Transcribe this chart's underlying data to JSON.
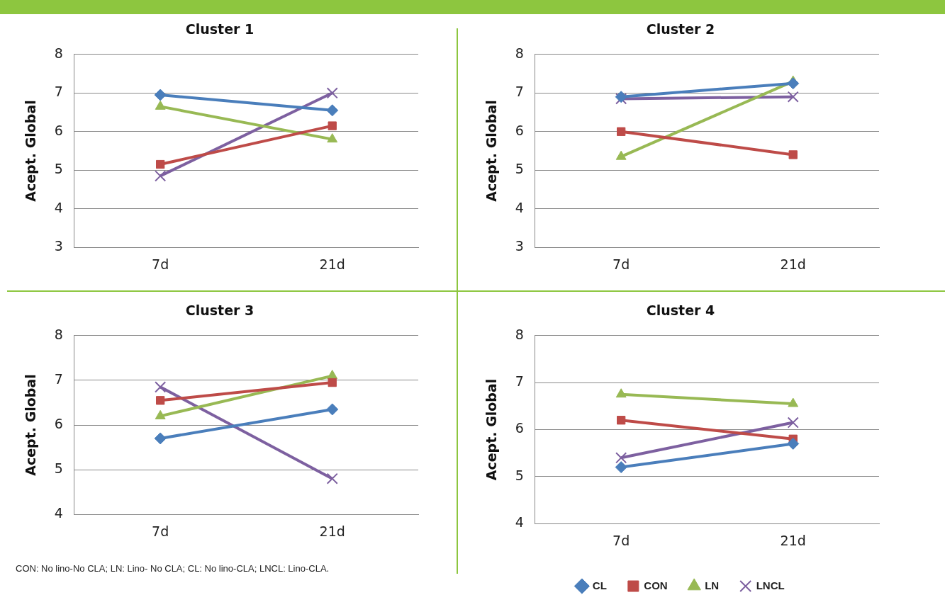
{
  "chart_data": [
    {
      "type": "line",
      "title": "Cluster 1",
      "ylabel": "Acept. Global",
      "categories": [
        "7d",
        "21d"
      ],
      "ylim": [
        3,
        8
      ],
      "yticks": [
        3,
        4,
        5,
        6,
        7,
        8
      ],
      "grid": "y",
      "legend": false,
      "series": [
        {
          "color": "#4a7ebb",
          "marker": "diamond",
          "values": [
            6.95,
            6.55
          ]
        },
        {
          "color": "#be4b48",
          "marker": "square",
          "values": [
            5.15,
            6.15
          ]
        },
        {
          "color": "#98b954",
          "marker": "triangle",
          "values": [
            6.65,
            5.8
          ]
        },
        {
          "color": "#7d60a0",
          "marker": "cross",
          "values": [
            4.85,
            7.0
          ]
        }
      ]
    },
    {
      "type": "line",
      "title": "Cluster 2",
      "ylabel": "Acept. Global",
      "categories": [
        "7d",
        "21d"
      ],
      "ylim": [
        3,
        8
      ],
      "yticks": [
        3,
        4,
        5,
        6,
        7,
        8
      ],
      "grid": "y",
      "legend": false,
      "series": [
        {
          "color": "#4a7ebb",
          "marker": "diamond",
          "values": [
            6.9,
            7.25
          ]
        },
        {
          "color": "#be4b48",
          "marker": "square",
          "values": [
            6.0,
            5.4
          ]
        },
        {
          "color": "#98b954",
          "marker": "triangle",
          "values": [
            5.35,
            7.3
          ]
        },
        {
          "color": "#7d60a0",
          "marker": "cross",
          "values": [
            6.85,
            6.9
          ]
        }
      ]
    },
    {
      "type": "line",
      "title": "Cluster 3",
      "ylabel": "Acept. Global",
      "categories": [
        "7d",
        "21d"
      ],
      "ylim": [
        4,
        8
      ],
      "yticks": [
        4,
        5,
        6,
        7,
        8
      ],
      "grid": "y",
      "legend": false,
      "annotations": [
        "CON: No lino-No CLA; LN: Lino- No CLA; CL: No lino-CLA; LNCL: Lino-CLA."
      ],
      "series": [
        {
          "color": "#4a7ebb",
          "marker": "diamond",
          "values": [
            5.7,
            6.35
          ]
        },
        {
          "color": "#be4b48",
          "marker": "square",
          "values": [
            6.55,
            6.95
          ]
        },
        {
          "color": "#98b954",
          "marker": "triangle",
          "values": [
            6.2,
            7.1
          ]
        },
        {
          "color": "#7d60a0",
          "marker": "cross",
          "values": [
            6.85,
            4.8
          ]
        }
      ]
    },
    {
      "type": "line",
      "title": "Cluster 4",
      "ylabel": "Acept. Global",
      "categories": [
        "7d",
        "21d"
      ],
      "ylim": [
        4,
        8
      ],
      "yticks": [
        4,
        5,
        6,
        7,
        8
      ],
      "grid": "y",
      "legend": "bottom",
      "series": [
        {
          "name": "CL",
          "color": "#4a7ebb",
          "marker": "diamond",
          "values": [
            5.2,
            5.7
          ]
        },
        {
          "name": "CON",
          "color": "#be4b48",
          "marker": "square",
          "values": [
            6.2,
            5.8
          ]
        },
        {
          "name": "LN",
          "color": "#98b954",
          "marker": "triangle",
          "values": [
            6.75,
            6.55
          ]
        },
        {
          "name": "LNCL",
          "color": "#7d60a0",
          "marker": "cross",
          "values": [
            5.4,
            6.15
          ]
        }
      ]
    }
  ]
}
